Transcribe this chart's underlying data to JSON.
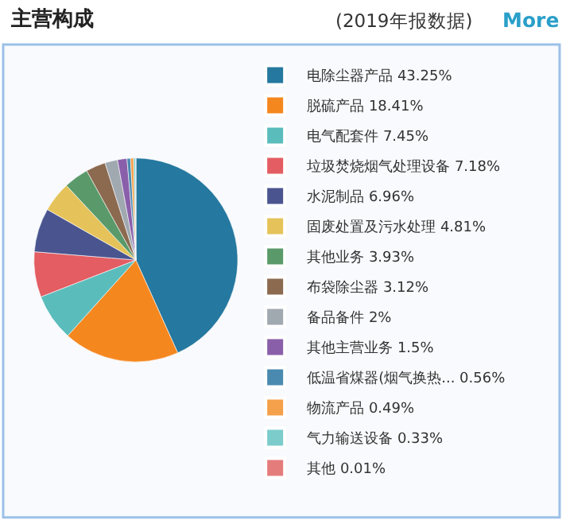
{
  "chart_data": {
    "type": "pie",
    "title": "主营构成",
    "subtitle": "(2019年报数据)",
    "annotations": [
      "More"
    ],
    "categories": [
      "电除尘器产品",
      "脱硫产品",
      "电气配套件",
      "垃圾焚烧烟气处理设备",
      "水泥制品",
      "固废处置及污水处理",
      "其他业务",
      "布袋除尘器",
      "备品备件",
      "其他主营业务",
      "低温省煤器(烟气换热...",
      "物流产品",
      "气力输送设备",
      "其他"
    ],
    "values": [
      43.25,
      18.41,
      7.45,
      7.18,
      6.96,
      4.81,
      3.93,
      3.12,
      2,
      1.5,
      0.56,
      0.49,
      0.33,
      0.01
    ],
    "value_labels": [
      "43.25%",
      "18.41%",
      "7.45%",
      "7.18%",
      "6.96%",
      "4.81%",
      "3.93%",
      "3.12%",
      "2%",
      "1.5%",
      "0.56%",
      "0.49%",
      "0.33%",
      "0.01%"
    ],
    "colors": [
      "#25789f",
      "#f5871f",
      "#5bbcbc",
      "#e35d63",
      "#4a5590",
      "#e5c35a",
      "#5a9a6a",
      "#8b6a50",
      "#a0a8b0",
      "#8a5faa",
      "#4a8ab0",
      "#f5a04a",
      "#7ccccc",
      "#e57c7c"
    ],
    "legend": "right"
  }
}
